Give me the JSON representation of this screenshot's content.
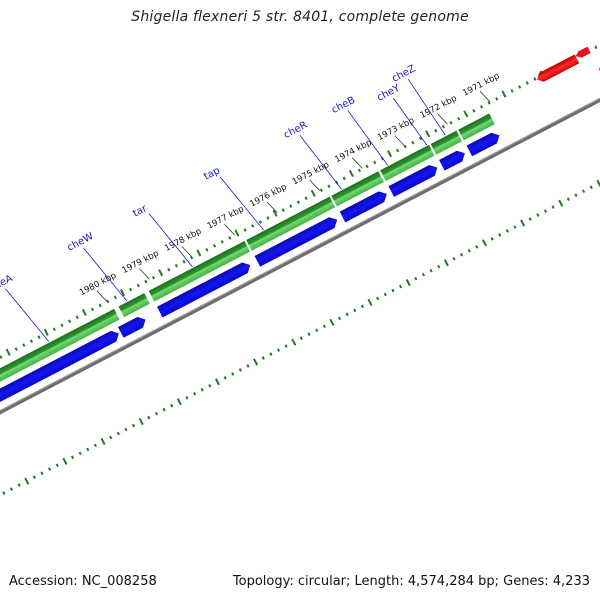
{
  "title": "Shigella flexneri 5 str. 8401, complete genome",
  "footer": {
    "accession": "Accession: NC_008258",
    "summary": "Topology: circular; Length: 4,574,284 bp; Genes: 4,233"
  },
  "ruler_labels": [
    "1971 kbp",
    "1972 kbp",
    "1973 kbp",
    "1974 kbp",
    "1975 kbp",
    "1976 kbp",
    "1977 kbp",
    "1978 kbp",
    "1979 kbp",
    "1980 kbp"
  ],
  "gene_labels": [
    "cheZ",
    "cheY",
    "cheB",
    "cheR",
    "tap",
    "tar",
    "cheW",
    "cheA"
  ],
  "colors": {
    "gene_track": "#2e9e2e",
    "cds_track": "#0a0adf",
    "backbone": "#707070",
    "ticks": "#1f7a1f",
    "feature_red": "#e8101a",
    "feature_pink": "#e0158a"
  }
}
